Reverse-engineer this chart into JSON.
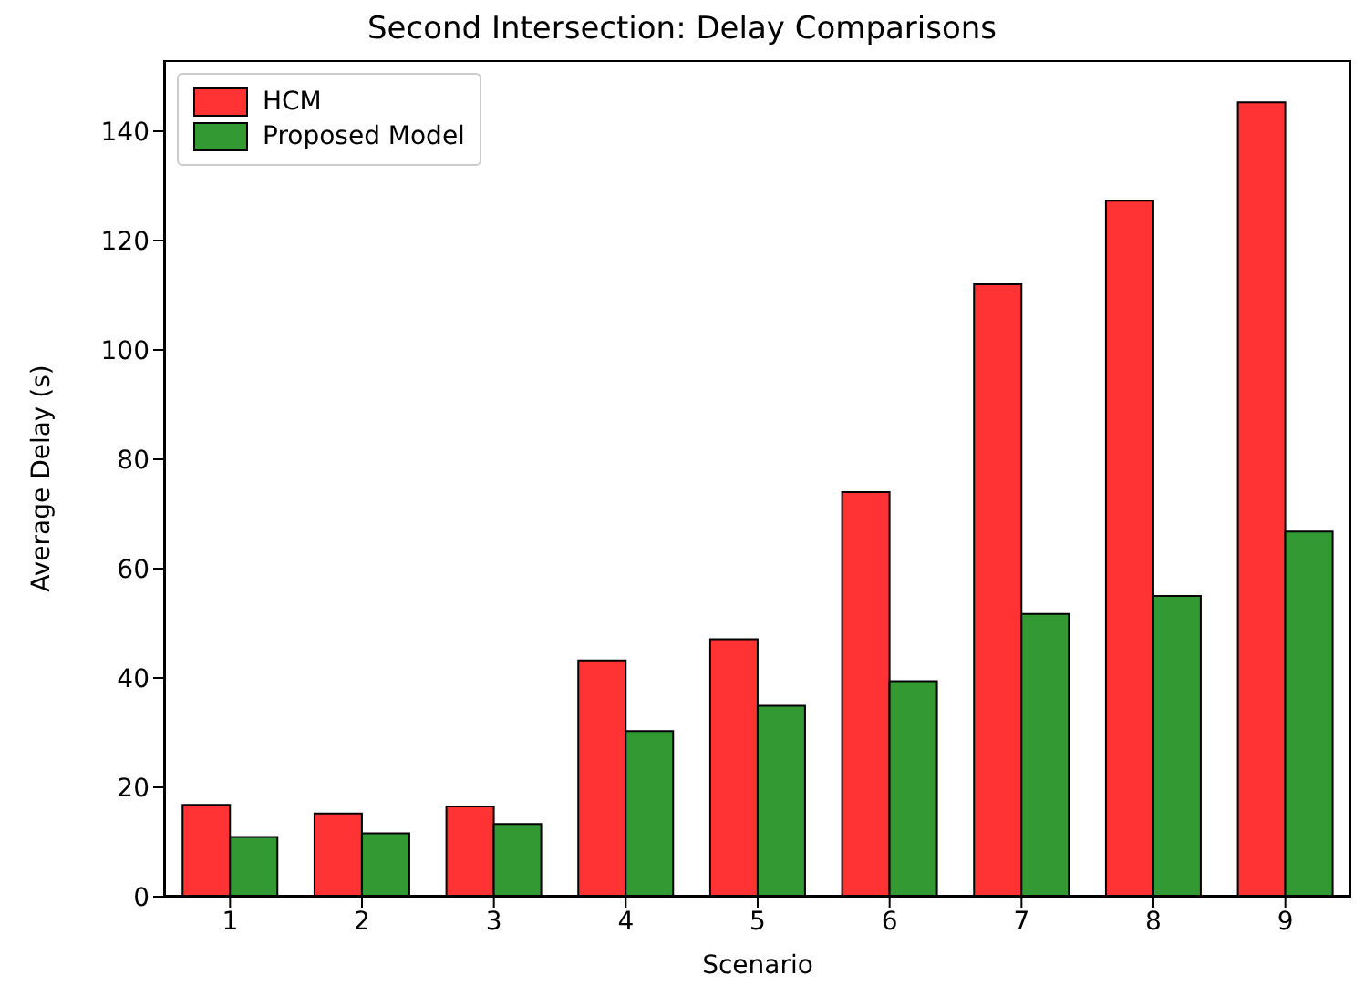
{
  "chart_data": {
    "type": "bar",
    "title": "Second Intersection: Delay Comparisons",
    "xlabel": "Scenario",
    "ylabel": "Average Delay (s)",
    "categories": [
      "1",
      "2",
      "3",
      "4",
      "5",
      "6",
      "7",
      "8",
      "9"
    ],
    "series": [
      {
        "name": "HCM",
        "color": "#ff3333",
        "values": [
          16.8,
          15.2,
          16.5,
          43.2,
          47.1,
          74,
          112,
          127.3,
          145.3
        ]
      },
      {
        "name": "Proposed Model",
        "color": "#339933",
        "values": [
          10.9,
          11.6,
          13.3,
          30.3,
          34.9,
          39.4,
          51.7,
          55,
          66.8
        ]
      }
    ],
    "ylim": [
      0,
      153
    ],
    "yticks": [
      0,
      20,
      40,
      60,
      80,
      100,
      120,
      140
    ],
    "grid": false,
    "legend": "top left"
  }
}
